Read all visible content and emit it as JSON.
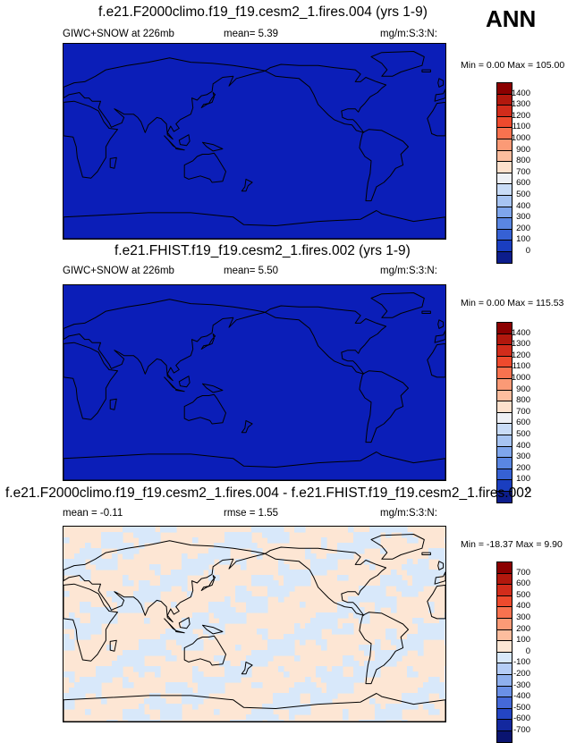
{
  "season": "ANN",
  "colors": {
    "map_blue": "#0b1eb8",
    "diff_warm": "#fde6d4",
    "diff_cool": "#d8e8fa",
    "coast": "#000000"
  },
  "panels": [
    {
      "title": "f.e21.F2000climo.f19_f19.cesm2_1.fires.004 (yrs 1-9)",
      "left_label": "GIWC+SNOW at 226mb",
      "center_label": "mean=  5.39",
      "units": "mg/m:S:3:N:",
      "minmax": "Min =   0.00 Max = 105.00",
      "colorbar": {
        "levels": [
          "1400",
          "1300",
          "1200",
          "1100",
          "1000",
          "900",
          "800",
          "700",
          "600",
          "500",
          "400",
          "300",
          "200",
          "100",
          "0"
        ],
        "colors": [
          "#8b0000",
          "#b2180d",
          "#d22c1b",
          "#ee4a2d",
          "#f8724f",
          "#fb9a76",
          "#fdbd9e",
          "#fde0cc",
          "#eef0f5",
          "#c9dcf7",
          "#a7c4f2",
          "#7fa6ec",
          "#5a86e2",
          "#3661d4",
          "#1a3ec0",
          "#0c1d8c"
        ]
      },
      "field": "uniform"
    },
    {
      "title": "f.e21.FHIST.f19_f19.cesm2_1.fires.002 (yrs 1-9)",
      "left_label": "GIWC+SNOW at 226mb",
      "center_label": "mean=  5.50",
      "units": "mg/m:S:3:N:",
      "minmax": "Min =   0.00 Max = 115.53",
      "colorbar": {
        "levels": [
          "1400",
          "1300",
          "1200",
          "1100",
          "1000",
          "900",
          "800",
          "700",
          "600",
          "500",
          "400",
          "300",
          "200",
          "100",
          "0"
        ],
        "colors": [
          "#8b0000",
          "#b2180d",
          "#d22c1b",
          "#ee4a2d",
          "#f8724f",
          "#fb9a76",
          "#fdbd9e",
          "#fde0cc",
          "#eef0f5",
          "#c9dcf7",
          "#a7c4f2",
          "#7fa6ec",
          "#5a86e2",
          "#3661d4",
          "#1a3ec0",
          "#0c1d8c"
        ]
      },
      "field": "uniform"
    },
    {
      "title": "f.e21.F2000climo.f19_f19.cesm2_1.fires.004 - f.e21.FHIST.f19_f19.cesm2_1.fires.002",
      "left_label": "mean =  -0.11",
      "center_label": "rmse =  1.55",
      "units": "mg/m:S:3:N:",
      "minmax": "Min = -18.37 Max =   9.90",
      "colorbar": {
        "levels": [
          "700",
          "600",
          "500",
          "400",
          "300",
          "200",
          "100",
          "0",
          "-100",
          "-200",
          "-300",
          "-400",
          "-500",
          "-600",
          "-700"
        ],
        "colors": [
          "#8b0000",
          "#b2180d",
          "#d22c1b",
          "#ee4a2d",
          "#f8724f",
          "#fb9a76",
          "#fdbd9e",
          "#fde6d4",
          "#d8e8fa",
          "#b5cdf6",
          "#8fb0ee",
          "#6a90e6",
          "#4569d8",
          "#2445c4",
          "#13289e",
          "#0a1470"
        ]
      },
      "field": "difference"
    }
  ]
}
